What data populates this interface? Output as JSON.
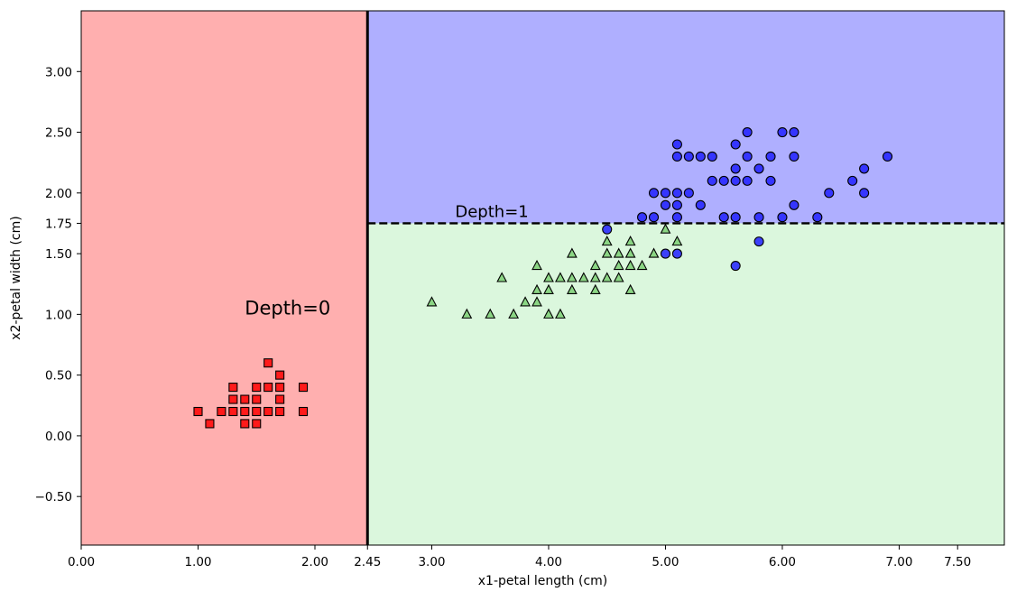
{
  "chart_data": {
    "type": "scatter",
    "title": "",
    "xlabel": "x1-petal length (cm)",
    "ylabel": "x2-petal width (cm)",
    "xlim": [
      0.0,
      7.9
    ],
    "ylim": [
      -0.9,
      3.5
    ],
    "xticks": [
      0.0,
      1.0,
      2.0,
      2.45,
      3.0,
      4.0,
      5.0,
      6.0,
      7.0,
      7.5
    ],
    "xtick_labels": [
      "0.00",
      "1.00",
      "2.00",
      "2.45",
      "3.00",
      "4.00",
      "5.00",
      "6.00",
      "7.00",
      "7.50"
    ],
    "yticks": [
      -0.5,
      0.0,
      0.5,
      1.0,
      1.5,
      1.75,
      2.0,
      2.5,
      3.0
    ],
    "ytick_labels": [
      "−0.50",
      "0.00",
      "0.50",
      "1.00",
      "1.50",
      "1.75",
      "2.00",
      "2.50",
      "3.00"
    ],
    "grid": false,
    "regions": [
      {
        "x": [
          0.0,
          2.45
        ],
        "y": [
          -0.9,
          3.5
        ],
        "color": "#ffafaf"
      },
      {
        "x": [
          2.45,
          7.9
        ],
        "y": [
          1.75,
          3.5
        ],
        "color": "#afafff"
      },
      {
        "x": [
          2.45,
          7.9
        ],
        "y": [
          -0.9,
          1.75
        ],
        "color": "#dbf7dd"
      }
    ],
    "boundaries": [
      {
        "orientation": "vertical",
        "value": 2.45,
        "style": "solid",
        "label": "Depth=0",
        "label_pos": [
          1.4,
          1.0
        ]
      },
      {
        "orientation": "horizontal",
        "value": 1.75,
        "from": 2.45,
        "style": "dashed",
        "label": "Depth=1",
        "label_pos": [
          3.2,
          1.8
        ]
      }
    ],
    "series": [
      {
        "marker": "square",
        "color": "#ff0000",
        "points": [
          [
            1.0,
            0.2
          ],
          [
            1.1,
            0.1
          ],
          [
            1.2,
            0.2
          ],
          [
            1.3,
            0.2
          ],
          [
            1.3,
            0.3
          ],
          [
            1.3,
            0.4
          ],
          [
            1.4,
            0.1
          ],
          [
            1.4,
            0.2
          ],
          [
            1.4,
            0.3
          ],
          [
            1.5,
            0.1
          ],
          [
            1.5,
            0.2
          ],
          [
            1.5,
            0.3
          ],
          [
            1.5,
            0.4
          ],
          [
            1.6,
            0.2
          ],
          [
            1.6,
            0.4
          ],
          [
            1.6,
            0.6
          ],
          [
            1.7,
            0.2
          ],
          [
            1.7,
            0.3
          ],
          [
            1.7,
            0.4
          ],
          [
            1.7,
            0.5
          ],
          [
            1.9,
            0.2
          ],
          [
            1.9,
            0.4
          ]
        ]
      },
      {
        "marker": "triangle",
        "color": "#7ccf74",
        "points": [
          [
            3.0,
            1.1
          ],
          [
            3.3,
            1.0
          ],
          [
            3.5,
            1.0
          ],
          [
            3.6,
            1.3
          ],
          [
            3.7,
            1.0
          ],
          [
            3.8,
            1.1
          ],
          [
            3.9,
            1.1
          ],
          [
            3.9,
            1.2
          ],
          [
            3.9,
            1.4
          ],
          [
            4.0,
            1.0
          ],
          [
            4.0,
            1.2
          ],
          [
            4.0,
            1.3
          ],
          [
            4.1,
            1.0
          ],
          [
            4.1,
            1.3
          ],
          [
            4.2,
            1.2
          ],
          [
            4.2,
            1.3
          ],
          [
            4.2,
            1.5
          ],
          [
            4.3,
            1.3
          ],
          [
            4.4,
            1.2
          ],
          [
            4.4,
            1.3
          ],
          [
            4.4,
            1.4
          ],
          [
            4.5,
            1.3
          ],
          [
            4.5,
            1.5
          ],
          [
            4.5,
            1.6
          ],
          [
            4.6,
            1.3
          ],
          [
            4.6,
            1.4
          ],
          [
            4.6,
            1.5
          ],
          [
            4.7,
            1.2
          ],
          [
            4.7,
            1.4
          ],
          [
            4.7,
            1.5
          ],
          [
            4.7,
            1.6
          ],
          [
            4.8,
            1.4
          ],
          [
            4.9,
            1.5
          ],
          [
            5.0,
            1.7
          ],
          [
            5.1,
            1.6
          ]
        ]
      },
      {
        "marker": "circle",
        "color": "#2020ff",
        "points": [
          [
            4.5,
            1.7
          ],
          [
            4.8,
            1.8
          ],
          [
            4.9,
            1.8
          ],
          [
            4.9,
            2.0
          ],
          [
            5.0,
            1.5
          ],
          [
            5.0,
            1.9
          ],
          [
            5.0,
            2.0
          ],
          [
            5.1,
            1.5
          ],
          [
            5.1,
            1.8
          ],
          [
            5.1,
            1.9
          ],
          [
            5.1,
            2.0
          ],
          [
            5.1,
            2.3
          ],
          [
            5.1,
            2.4
          ],
          [
            5.2,
            2.0
          ],
          [
            5.2,
            2.3
          ],
          [
            5.3,
            1.9
          ],
          [
            5.3,
            2.3
          ],
          [
            5.4,
            2.1
          ],
          [
            5.4,
            2.3
          ],
          [
            5.5,
            1.8
          ],
          [
            5.5,
            2.1
          ],
          [
            5.6,
            1.4
          ],
          [
            5.6,
            1.8
          ],
          [
            5.6,
            2.1
          ],
          [
            5.6,
            2.2
          ],
          [
            5.6,
            2.4
          ],
          [
            5.7,
            2.1
          ],
          [
            5.7,
            2.3
          ],
          [
            5.7,
            2.5
          ],
          [
            5.8,
            1.6
          ],
          [
            5.8,
            1.8
          ],
          [
            5.8,
            2.2
          ],
          [
            5.9,
            2.1
          ],
          [
            5.9,
            2.3
          ],
          [
            6.0,
            1.8
          ],
          [
            6.0,
            2.5
          ],
          [
            6.1,
            1.9
          ],
          [
            6.1,
            2.3
          ],
          [
            6.1,
            2.5
          ],
          [
            6.3,
            1.8
          ],
          [
            6.4,
            2.0
          ],
          [
            6.6,
            2.1
          ],
          [
            6.7,
            2.0
          ],
          [
            6.7,
            2.2
          ],
          [
            6.9,
            2.3
          ]
        ]
      }
    ]
  }
}
